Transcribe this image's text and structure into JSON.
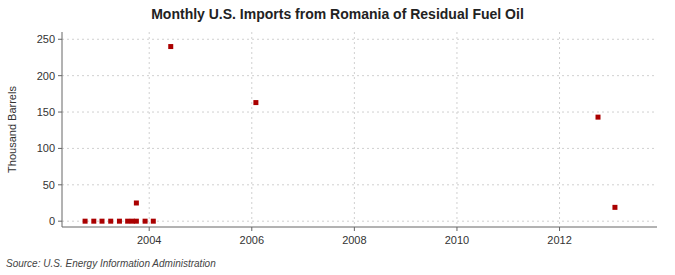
{
  "chart_data": {
    "type": "scatter",
    "title": "Monthly U.S. Imports from Romania of Residual Fuel Oil",
    "ylabel": "Thousand Barrels",
    "annotations": [
      "Source: U.S. Energy Information Administration"
    ],
    "x": [
      2002.75,
      2002.92,
      2003.08,
      2003.25,
      2003.42,
      2003.58,
      2003.67,
      2003.75,
      2003.75,
      2003.92,
      2004.08,
      2004.42,
      2006.08,
      2012.75,
      2013.08
    ],
    "values": [
      0.0,
      0.0,
      0.0,
      0.0,
      0.0,
      0.0,
      0.0,
      0.0,
      25,
      0.0,
      0.0,
      240,
      163,
      143,
      19
    ],
    "color": "#aa0000",
    "marker": "square",
    "xlim": [
      2002.3,
      2013.9
    ],
    "ylim": [
      -8,
      260
    ],
    "xticks": [
      2004,
      2006,
      2008,
      2010,
      2012
    ],
    "yticks": [
      0,
      50,
      100,
      150,
      200,
      250
    ],
    "grid": true
  }
}
